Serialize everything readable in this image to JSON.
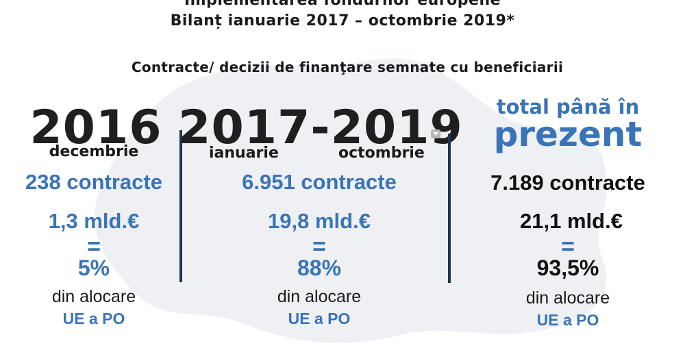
{
  "header": {
    "line1": "Implementarea fondurilor europene",
    "line2": "Bilanț ianuarie 2017 – octombrie 2019*",
    "subtitle": "Contracte/ decizii de finanţare semnate cu beneficiarii"
  },
  "columns": [
    {
      "year": "2016",
      "month": "decembrie",
      "contracts": "238 contracte",
      "amount": "1,3 mld.€",
      "equals": "=",
      "percent": "5%",
      "alloc_line1": "din alocare",
      "alloc_line2": "UE a PO"
    },
    {
      "year": "2017-2019",
      "month_start": "ianuarie",
      "month_end": "octombrie",
      "contracts": "6.951 contracte",
      "amount": "19,8 mld.€",
      "equals": "=",
      "percent": "88%",
      "alloc_line1": "din alocare",
      "alloc_line2": "UE a PO"
    },
    {
      "title_line1": "total până în",
      "title_line2": "prezent",
      "contracts": "7.189 contracte",
      "amount": "21,1 mld.€",
      "equals": "=",
      "percent": "93,5%",
      "alloc_line1": "din alocare",
      "alloc_line2": "UE a PO"
    }
  ],
  "colors": {
    "accent_blue": "#3a74b8",
    "divider": "#1f3550",
    "map_background": "#eef0f3"
  }
}
